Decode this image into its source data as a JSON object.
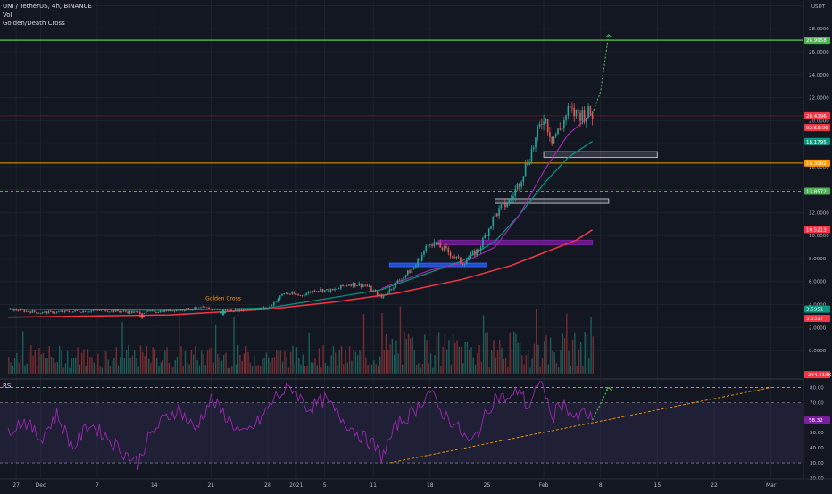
{
  "header": {
    "title": "UNI / TetherUS, 4h, BINANCE",
    "indicator_vol": "Vol",
    "indicator_gdc": "Golden/Death Cross",
    "currency": "USDT"
  },
  "colors": {
    "background": "#131722",
    "up_candle": "#26a69a",
    "down_candle": "#ef5350",
    "rsi_line": "#9c27b0",
    "ma_fast": "#9c27b0",
    "ma_mid": "#089981",
    "ma_slow": "#f23645",
    "green_level": "#4caf50",
    "orange_level": "#ff9800",
    "zone_blue": "#2962ff",
    "zone_purple": "#7b1fa2",
    "zone_white": "#b2b5be"
  },
  "chart_data": [
    {
      "type": "candlestick",
      "name": "price",
      "x_ticks": [
        "27",
        "Dec",
        "7",
        "14",
        "21",
        "28",
        "2021",
        "5",
        "11",
        "18",
        "25",
        "Feb",
        "8",
        "15",
        "22",
        "Mar"
      ],
      "y_ticks": [
        "0.0000",
        "2.0000",
        "4.0000",
        "6.0000",
        "8.0000",
        "10.0000",
        "12.0000",
        "14.0000",
        "16.0000",
        "18.0000",
        "20.0000",
        "22.0000",
        "24.0000",
        "26.0000",
        "28.0000",
        "30.0000"
      ],
      "y_tick_values": [
        0,
        2,
        4,
        6,
        8,
        10,
        12,
        14,
        16,
        18,
        20,
        22,
        24,
        26,
        28,
        30
      ],
      "ylim": [
        -2.4,
        30.5
      ],
      "x_tick_positions": [
        1,
        4,
        11,
        18,
        25,
        32,
        35.5,
        39,
        45,
        52,
        59,
        66,
        73,
        80,
        87,
        94
      ],
      "xlim": [
        -1,
        98
      ],
      "close_path": [
        [
          0,
          3.6
        ],
        [
          4,
          3.3
        ],
        [
          8,
          3.4
        ],
        [
          12,
          3.5
        ],
        [
          16,
          3.3
        ],
        [
          20,
          3.5
        ],
        [
          24,
          3.7
        ],
        [
          27,
          3.5
        ],
        [
          32,
          3.7
        ],
        [
          34,
          5.0
        ],
        [
          36,
          4.8
        ],
        [
          38,
          5.3
        ],
        [
          40,
          5.2
        ],
        [
          42,
          5.8
        ],
        [
          44,
          5.7
        ],
        [
          46,
          4.6
        ],
        [
          48,
          6.0
        ],
        [
          50,
          7.2
        ],
        [
          52,
          9.5
        ],
        [
          54,
          8.7
        ],
        [
          56,
          7.6
        ],
        [
          58,
          8.8
        ],
        [
          60,
          11.8
        ],
        [
          62,
          13.2
        ],
        [
          63,
          14.7
        ],
        [
          64,
          16.5
        ],
        [
          65,
          18.3
        ],
        [
          66,
          20.5
        ],
        [
          67,
          18.5
        ],
        [
          68,
          19.2
        ],
        [
          69,
          20.8
        ],
        [
          70,
          20.6
        ]
      ],
      "price_labels": [
        {
          "label": "26.9958",
          "value": 27.0,
          "color": "#4caf50"
        },
        {
          "label": "20.4196",
          "value": 20.42,
          "color": "#f23645"
        },
        {
          "label": "02:53:09",
          "value": 19.4,
          "color": "#f23645"
        },
        {
          "label": "18.1795",
          "value": 18.18,
          "color": "#089981"
        },
        {
          "label": "16.3082",
          "value": 16.31,
          "color": "#ff9800"
        },
        {
          "label": "13.8572",
          "value": 13.86,
          "color": "#4caf50"
        },
        {
          "label": "10.5213",
          "value": 10.52,
          "color": "#f23645"
        },
        {
          "label": "3.5951",
          "value": 3.6,
          "color": "#089981"
        },
        {
          "label": "3.5317",
          "value": 2.8,
          "color": "#f23645"
        },
        {
          "label": "-244.419K",
          "value": -2.1,
          "color": "#f23645"
        }
      ],
      "levels": [
        {
          "name": "resistance-top",
          "value": 27.0,
          "color": "#4caf50",
          "style": "solid"
        },
        {
          "name": "orange-level",
          "value": 16.31,
          "color": "#ff9800",
          "style": "solid"
        },
        {
          "name": "green-dashed-level",
          "value": 13.86,
          "color": "#4caf50",
          "style": "dashed"
        },
        {
          "name": "dark-red-level",
          "value": 20.42,
          "color": "#5d1a22",
          "style": "solid"
        }
      ],
      "zones": [
        {
          "name": "blue-zone",
          "x0": 47,
          "x1": 59,
          "y0": 7.3,
          "y1": 7.6,
          "color": "#2962ff"
        },
        {
          "name": "purple-zone",
          "x0": 53,
          "x1": 72,
          "y0": 9.2,
          "y1": 9.6,
          "color": "#7b1fa2"
        },
        {
          "name": "white-zone-lower",
          "x0": 60,
          "x1": 74,
          "y0": 12.8,
          "y1": 13.2,
          "color": "#b2b5be"
        },
        {
          "name": "white-zone-upper",
          "x0": 66,
          "x1": 80,
          "y0": 16.8,
          "y1": 17.3,
          "color": "#b2b5be"
        }
      ],
      "ma_fast": [
        [
          46,
          5.4
        ],
        [
          52,
          7.0
        ],
        [
          56,
          7.6
        ],
        [
          60,
          9.0
        ],
        [
          63,
          11.8
        ],
        [
          66,
          15.6
        ],
        [
          69,
          18.8
        ],
        [
          72,
          20.6
        ]
      ],
      "ma_mid": [
        [
          0,
          3.6
        ],
        [
          20,
          3.5
        ],
        [
          32,
          3.7
        ],
        [
          40,
          4.6
        ],
        [
          46,
          5.3
        ],
        [
          52,
          6.8
        ],
        [
          56,
          7.8
        ],
        [
          60,
          9.5
        ],
        [
          63,
          11.8
        ],
        [
          66,
          14.5
        ],
        [
          69,
          16.8
        ],
        [
          72,
          18.2
        ]
      ],
      "ma_slow": [
        [
          0,
          2.9
        ],
        [
          20,
          3.1
        ],
        [
          32,
          3.6
        ],
        [
          40,
          4.2
        ],
        [
          48,
          5.0
        ],
        [
          56,
          6.2
        ],
        [
          62,
          7.4
        ],
        [
          66,
          8.5
        ],
        [
          70,
          9.6
        ],
        [
          72,
          10.5
        ]
      ],
      "projection": [
        [
          72,
          20.6
        ],
        [
          73,
          22.5
        ],
        [
          74,
          27.5
        ]
      ],
      "annotation": {
        "text": "Golden Cross",
        "x": 26.5,
        "value": 4.4
      },
      "cross_markers": [
        {
          "x": 16.5,
          "value": 3.0,
          "color": "#ef5350"
        },
        {
          "x": 26.5,
          "value": 3.3,
          "color": "#26a69a"
        }
      ]
    },
    {
      "type": "line",
      "name": "RSI",
      "title": "RSI",
      "y_ticks": [
        "20.00",
        "30.00",
        "40.00",
        "50.00",
        "60.00",
        "70.00",
        "80.00"
      ],
      "y_tick_values": [
        20,
        30,
        40,
        50,
        60,
        70,
        80
      ],
      "ylim": [
        20,
        85
      ],
      "current_label": "58.32",
      "current_value": 58.32,
      "upper_band": 80,
      "mid_band": 70,
      "lower_band": 30,
      "fill_range": [
        30,
        70
      ],
      "trendline": [
        [
          47,
          30
        ],
        [
          94,
          80
        ]
      ],
      "projection": [
        [
          72,
          58.3
        ],
        [
          74,
          80
        ]
      ],
      "rsi_path": [
        [
          0,
          52
        ],
        [
          2,
          58
        ],
        [
          4,
          46
        ],
        [
          6,
          62
        ],
        [
          8,
          40
        ],
        [
          10,
          56
        ],
        [
          12,
          48
        ],
        [
          14,
          38
        ],
        [
          16,
          30
        ],
        [
          17,
          44
        ],
        [
          19,
          58
        ],
        [
          21,
          66
        ],
        [
          23,
          52
        ],
        [
          25,
          72
        ],
        [
          27,
          60
        ],
        [
          29,
          48
        ],
        [
          31,
          58
        ],
        [
          33,
          74
        ],
        [
          35,
          80
        ],
        [
          37,
          66
        ],
        [
          39,
          72
        ],
        [
          41,
          60
        ],
        [
          43,
          50
        ],
        [
          45,
          42
        ],
        [
          46,
          34
        ],
        [
          48,
          56
        ],
        [
          50,
          64
        ],
        [
          52,
          78
        ],
        [
          53,
          66
        ],
        [
          55,
          56
        ],
        [
          57,
          42
        ],
        [
          58,
          52
        ],
        [
          60,
          74
        ],
        [
          62,
          72
        ],
        [
          63,
          80
        ],
        [
          64,
          66
        ],
        [
          65,
          78
        ],
        [
          66,
          82
        ],
        [
          67,
          58
        ],
        [
          68,
          70
        ],
        [
          69,
          66
        ],
        [
          70,
          58
        ],
        [
          71,
          64
        ],
        [
          72,
          58
        ]
      ]
    }
  ]
}
